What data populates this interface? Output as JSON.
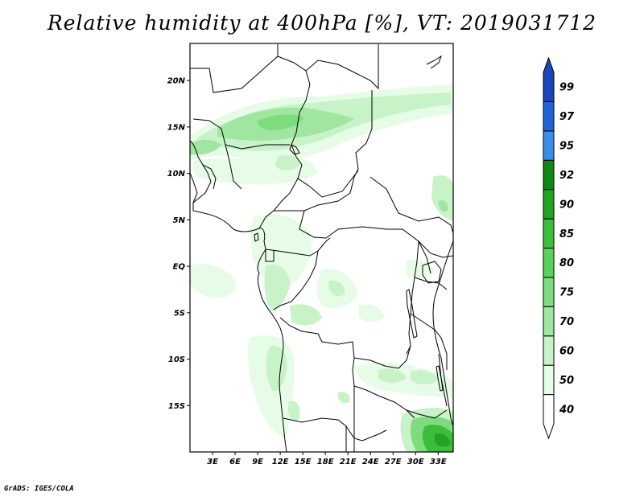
{
  "title": "Relative humidity at 400hPa [%], VT: 2019031712",
  "credit": "GrADS: IGES/COLA",
  "map": {
    "lon_range": [
      0,
      35
    ],
    "lat_range": [
      -20,
      24
    ],
    "lat_labels": [
      "20N",
      "15N",
      "10N",
      "5N",
      "EQ",
      "5S",
      "10S",
      "15S"
    ],
    "lat_values": [
      20,
      15,
      10,
      5,
      0,
      -5,
      -10,
      -15
    ],
    "lon_labels": [
      "3E",
      "6E",
      "9E",
      "12E",
      "15E",
      "18E",
      "21E",
      "24E",
      "27E",
      "30E",
      "33E"
    ],
    "lon_values": [
      3,
      6,
      9,
      12,
      15,
      18,
      21,
      24,
      27,
      30,
      33
    ]
  },
  "colorbar": {
    "levels": [
      "99",
      "97",
      "95",
      "92",
      "90",
      "85",
      "80",
      "75",
      "70",
      "60",
      "50",
      "40"
    ],
    "colors": [
      "#ffffff",
      "#e6fce6",
      "#c8f2c8",
      "#a0e6a0",
      "#7ddc7d",
      "#5ad25a",
      "#3cbe3c",
      "#22a322",
      "#118811",
      "#3c8de8",
      "#2264d8",
      "#1a46b8"
    ]
  },
  "colors": {
    "frame": "#000000",
    "border": "#000000"
  }
}
